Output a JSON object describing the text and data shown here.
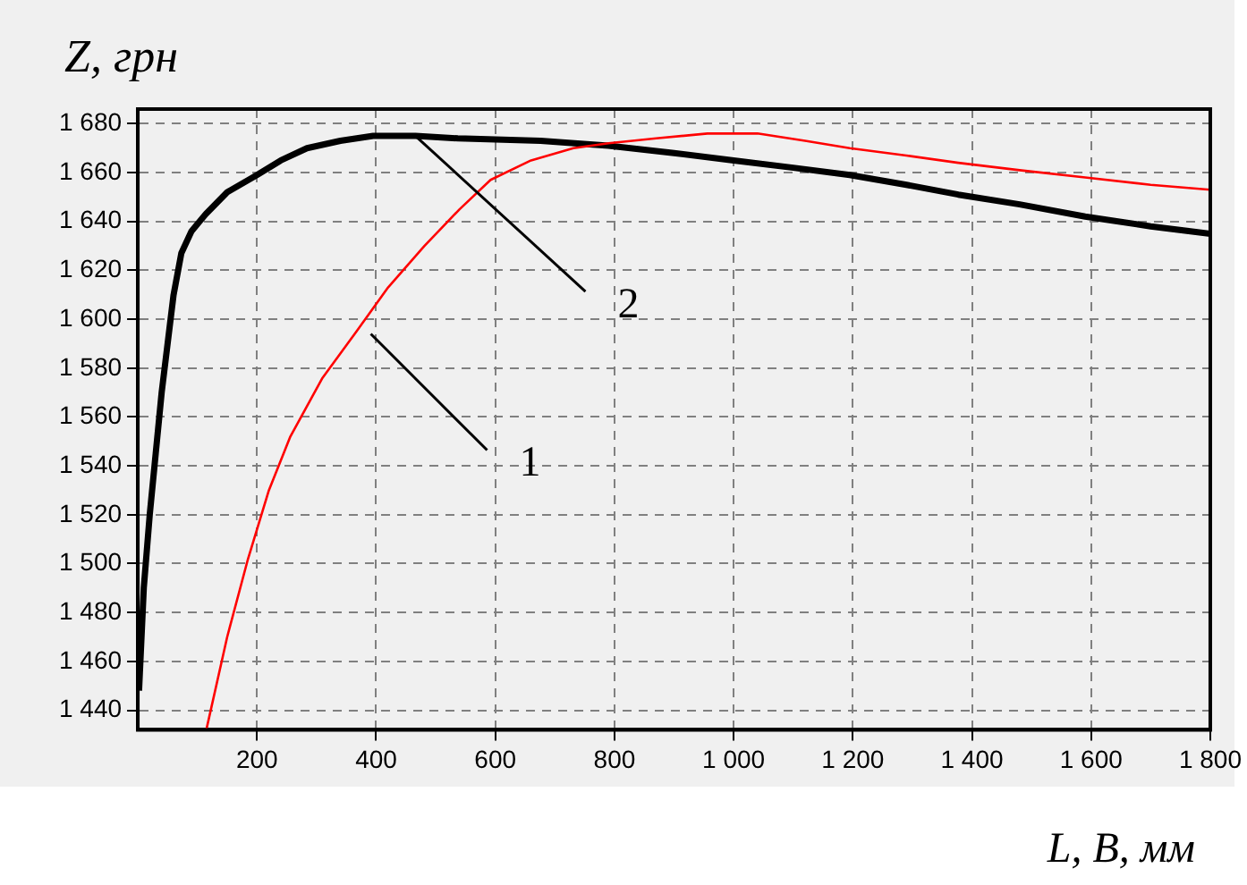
{
  "chart_data": {
    "type": "line",
    "xlabel": "L, B, мм",
    "ylabel": "Z, грн",
    "xlim": [
      0,
      1800
    ],
    "ylim": [
      1432,
      1686
    ],
    "xticks": [
      {
        "value": 200,
        "label": "200"
      },
      {
        "value": 400,
        "label": "400"
      },
      {
        "value": 600,
        "label": "600"
      },
      {
        "value": 800,
        "label": "800"
      },
      {
        "value": 1000,
        "label": "1 000"
      },
      {
        "value": 1200,
        "label": "1 200"
      },
      {
        "value": 1400,
        "label": "1 400"
      },
      {
        "value": 1600,
        "label": "1 600"
      },
      {
        "value": 1800,
        "label": "1 800"
      }
    ],
    "yticks": [
      {
        "value": 1440,
        "label": "1 440"
      },
      {
        "value": 1460,
        "label": "1 460"
      },
      {
        "value": 1480,
        "label": "1 480"
      },
      {
        "value": 1500,
        "label": "1 500"
      },
      {
        "value": 1520,
        "label": "1 520"
      },
      {
        "value": 1540,
        "label": "1 540"
      },
      {
        "value": 1560,
        "label": "1 560"
      },
      {
        "value": 1580,
        "label": "1 580"
      },
      {
        "value": 1600,
        "label": "1 600"
      },
      {
        "value": 1620,
        "label": "1 620"
      },
      {
        "value": 1640,
        "label": "1 640"
      },
      {
        "value": 1660,
        "label": "1 660"
      },
      {
        "value": 1680,
        "label": "1 680"
      }
    ],
    "series": [
      {
        "color": "#ff0000",
        "x": [
          115,
          150,
          185,
          220,
          256,
          310,
          367,
          420,
          481,
          540,
          592,
          660,
          731,
          790,
          870,
          956,
          1040,
          1120,
          1195,
          1290,
          1377,
          1480,
          1590,
          1700,
          1800
        ],
        "values": [
          1432,
          1470,
          1502,
          1530,
          1552,
          1576,
          1595,
          1613,
          1630,
          1645,
          1657,
          1665,
          1670,
          1672,
          1674,
          1676,
          1676,
          1673,
          1670,
          1667,
          1664,
          1661,
          1658,
          1655,
          1653
        ]
      },
      {
        "color": "#000000",
        "x": [
          2,
          10,
          20,
          30,
          40,
          50,
          60,
          73,
          90,
          114,
          150,
          200,
          240,
          284,
          340,
          395,
          466,
          537,
          676,
          790,
          900,
          1000,
          1100,
          1195,
          1290,
          1377,
          1480,
          1590,
          1700,
          1800
        ],
        "values": [
          1448,
          1490,
          1520,
          1545,
          1570,
          1590,
          1610,
          1627,
          1636,
          1643,
          1652,
          1659,
          1665,
          1670,
          1673,
          1675,
          1675,
          1674,
          1673,
          1671,
          1668,
          1665,
          1662,
          1659,
          1655,
          1651,
          1647,
          1642,
          1638,
          1635
        ]
      }
    ],
    "annotations": [
      {
        "text": "1",
        "x": 367,
        "y": 1594
      },
      {
        "text": "2",
        "x": 466,
        "y": 1675
      }
    ],
    "grid": true,
    "legend": false,
    "line_style": "solid",
    "marker": "none"
  }
}
